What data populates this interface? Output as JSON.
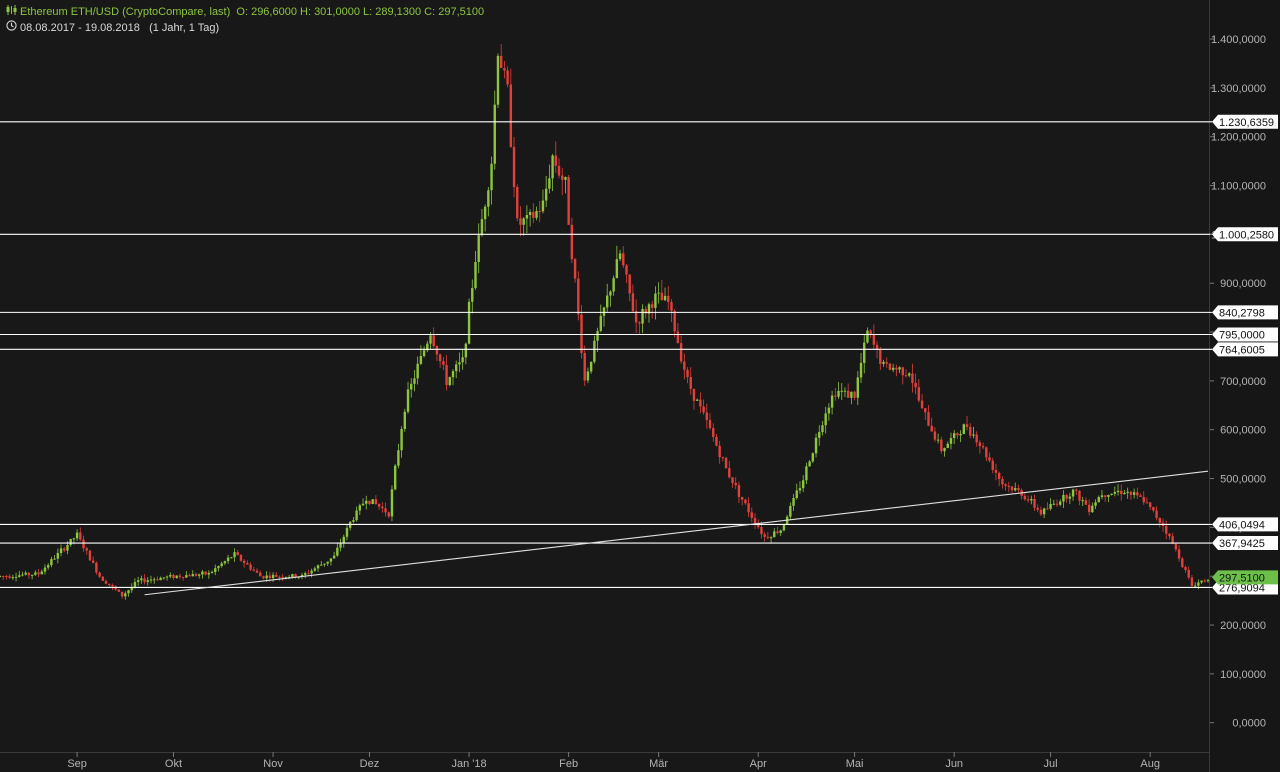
{
  "header": {
    "title": "Ethereum ETH/USD (CryptoCompare, last)",
    "ohlc": "O: 296,6000  H: 301,0000  L: 289,1300  C: 297,5100",
    "range_text": "08.08.2017 - 19.08.2018",
    "interval": "(1 Jahr, 1 Tag)",
    "title_icon": "candlestick-icon",
    "range_icon": "clock-icon"
  },
  "colors": {
    "background": "#181818",
    "up": "#8cc63f",
    "down": "#e2403a",
    "level_line": "#ffffff",
    "trendline": "#e0e0e0",
    "last_price_tag": "#6cc04a"
  },
  "chart_data": {
    "type": "candlestick",
    "x_range": [
      "2017-08-08",
      "2018-08-19"
    ],
    "x_ticks": [
      {
        "label": "Sep",
        "date": "2017-09-01"
      },
      {
        "label": "Okt",
        "date": "2017-10-01"
      },
      {
        "label": "Nov",
        "date": "2017-11-01"
      },
      {
        "label": "Dez",
        "date": "2017-12-01"
      },
      {
        "label": "Jan '18",
        "date": "2018-01-01"
      },
      {
        "label": "Feb",
        "date": "2018-02-01"
      },
      {
        "label": "Mär",
        "date": "2018-03-01"
      },
      {
        "label": "Apr",
        "date": "2018-04-01"
      },
      {
        "label": "Mai",
        "date": "2018-05-01"
      },
      {
        "label": "Jun",
        "date": "2018-06-01"
      },
      {
        "label": "Jul",
        "date": "2018-07-01"
      },
      {
        "label": "Aug",
        "date": "2018-08-01"
      }
    ],
    "y_range": [
      -60,
      1480
    ],
    "y_ticks": [
      {
        "value": 0,
        "label": "0,0000"
      },
      {
        "value": 100,
        "label": "100,0000"
      },
      {
        "value": 200,
        "label": "200,0000"
      },
      {
        "value": 300,
        "label": "300,0000"
      },
      {
        "value": 400,
        "label": "400,0000"
      },
      {
        "value": 500,
        "label": "500,0000"
      },
      {
        "value": 600,
        "label": "600,0000"
      },
      {
        "value": 700,
        "label": "700,0000"
      },
      {
        "value": 800,
        "label": "800,0000"
      },
      {
        "value": 900,
        "label": "900,0000"
      },
      {
        "value": 1000,
        "label": "1.000,0000"
      },
      {
        "value": 1100,
        "label": "1.100,0000"
      },
      {
        "value": 1200,
        "label": "1.200,0000"
      },
      {
        "value": 1300,
        "label": "1.300,0000"
      },
      {
        "value": 1400,
        "label": "1.400,0000"
      }
    ],
    "levels": [
      {
        "value": 1230.6359,
        "label": "1.230,6359"
      },
      {
        "value": 1000.258,
        "label": "1.000,2580"
      },
      {
        "value": 840.2798,
        "label": "840,2798"
      },
      {
        "value": 795.0,
        "label": "795,0000"
      },
      {
        "value": 764.6005,
        "label": "764,6005"
      },
      {
        "value": 406.0494,
        "label": "406,0494"
      },
      {
        "value": 367.9425,
        "label": "367,9425"
      },
      {
        "value": 276.9094,
        "label": "276,9094"
      }
    ],
    "last_price": {
      "value": 297.51,
      "label": "297,5100"
    },
    "trendline": [
      {
        "date": "2017-09-22",
        "value": 262
      },
      {
        "date": "2018-08-19",
        "value": 515
      }
    ],
    "price_path": [
      {
        "date": "2017-08-08",
        "value": 300
      },
      {
        "date": "2017-08-20",
        "value": 305
      },
      {
        "date": "2017-09-01",
        "value": 385
      },
      {
        "date": "2017-09-03",
        "value": 360
      },
      {
        "date": "2017-09-08",
        "value": 300
      },
      {
        "date": "2017-09-15",
        "value": 260
      },
      {
        "date": "2017-09-20",
        "value": 290
      },
      {
        "date": "2017-10-01",
        "value": 300
      },
      {
        "date": "2017-10-12",
        "value": 305
      },
      {
        "date": "2017-10-20",
        "value": 345
      },
      {
        "date": "2017-10-28",
        "value": 300
      },
      {
        "date": "2017-11-10",
        "value": 300
      },
      {
        "date": "2017-11-20",
        "value": 340
      },
      {
        "date": "2017-11-25",
        "value": 410
      },
      {
        "date": "2017-11-30",
        "value": 460
      },
      {
        "date": "2017-12-07",
        "value": 430
      },
      {
        "date": "2017-12-12",
        "value": 650
      },
      {
        "date": "2017-12-15",
        "value": 710
      },
      {
        "date": "2017-12-20",
        "value": 800
      },
      {
        "date": "2017-12-25",
        "value": 700
      },
      {
        "date": "2017-12-30",
        "value": 740
      },
      {
        "date": "2018-01-03",
        "value": 950
      },
      {
        "date": "2018-01-08",
        "value": 1150
      },
      {
        "date": "2018-01-10",
        "value": 1380
      },
      {
        "date": "2018-01-13",
        "value": 1290
      },
      {
        "date": "2018-01-16",
        "value": 1020
      },
      {
        "date": "2018-01-20",
        "value": 1030
      },
      {
        "date": "2018-01-24",
        "value": 1060
      },
      {
        "date": "2018-01-27",
        "value": 1160
      },
      {
        "date": "2018-01-31",
        "value": 1100
      },
      {
        "date": "2018-02-03",
        "value": 900
      },
      {
        "date": "2018-02-06",
        "value": 700
      },
      {
        "date": "2018-02-12",
        "value": 845
      },
      {
        "date": "2018-02-17",
        "value": 960
      },
      {
        "date": "2018-02-22",
        "value": 820
      },
      {
        "date": "2018-02-28",
        "value": 870
      },
      {
        "date": "2018-03-04",
        "value": 860
      },
      {
        "date": "2018-03-10",
        "value": 700
      },
      {
        "date": "2018-03-17",
        "value": 600
      },
      {
        "date": "2018-03-22",
        "value": 520
      },
      {
        "date": "2018-03-28",
        "value": 445
      },
      {
        "date": "2018-04-03",
        "value": 380
      },
      {
        "date": "2018-04-08",
        "value": 395
      },
      {
        "date": "2018-04-15",
        "value": 500
      },
      {
        "date": "2018-04-22",
        "value": 640
      },
      {
        "date": "2018-04-25",
        "value": 680
      },
      {
        "date": "2018-05-01",
        "value": 670
      },
      {
        "date": "2018-05-05",
        "value": 800
      },
      {
        "date": "2018-05-10",
        "value": 730
      },
      {
        "date": "2018-05-18",
        "value": 720
      },
      {
        "date": "2018-05-22",
        "value": 640
      },
      {
        "date": "2018-05-28",
        "value": 560
      },
      {
        "date": "2018-06-05",
        "value": 610
      },
      {
        "date": "2018-06-10",
        "value": 560
      },
      {
        "date": "2018-06-16",
        "value": 490
      },
      {
        "date": "2018-06-22",
        "value": 470
      },
      {
        "date": "2018-06-28",
        "value": 430
      },
      {
        "date": "2018-07-08",
        "value": 475
      },
      {
        "date": "2018-07-13",
        "value": 440
      },
      {
        "date": "2018-07-17",
        "value": 470
      },
      {
        "date": "2018-07-24",
        "value": 475
      },
      {
        "date": "2018-07-30",
        "value": 455
      },
      {
        "date": "2018-08-05",
        "value": 405
      },
      {
        "date": "2018-08-10",
        "value": 340
      },
      {
        "date": "2018-08-14",
        "value": 280
      },
      {
        "date": "2018-08-19",
        "value": 297.51
      }
    ]
  }
}
